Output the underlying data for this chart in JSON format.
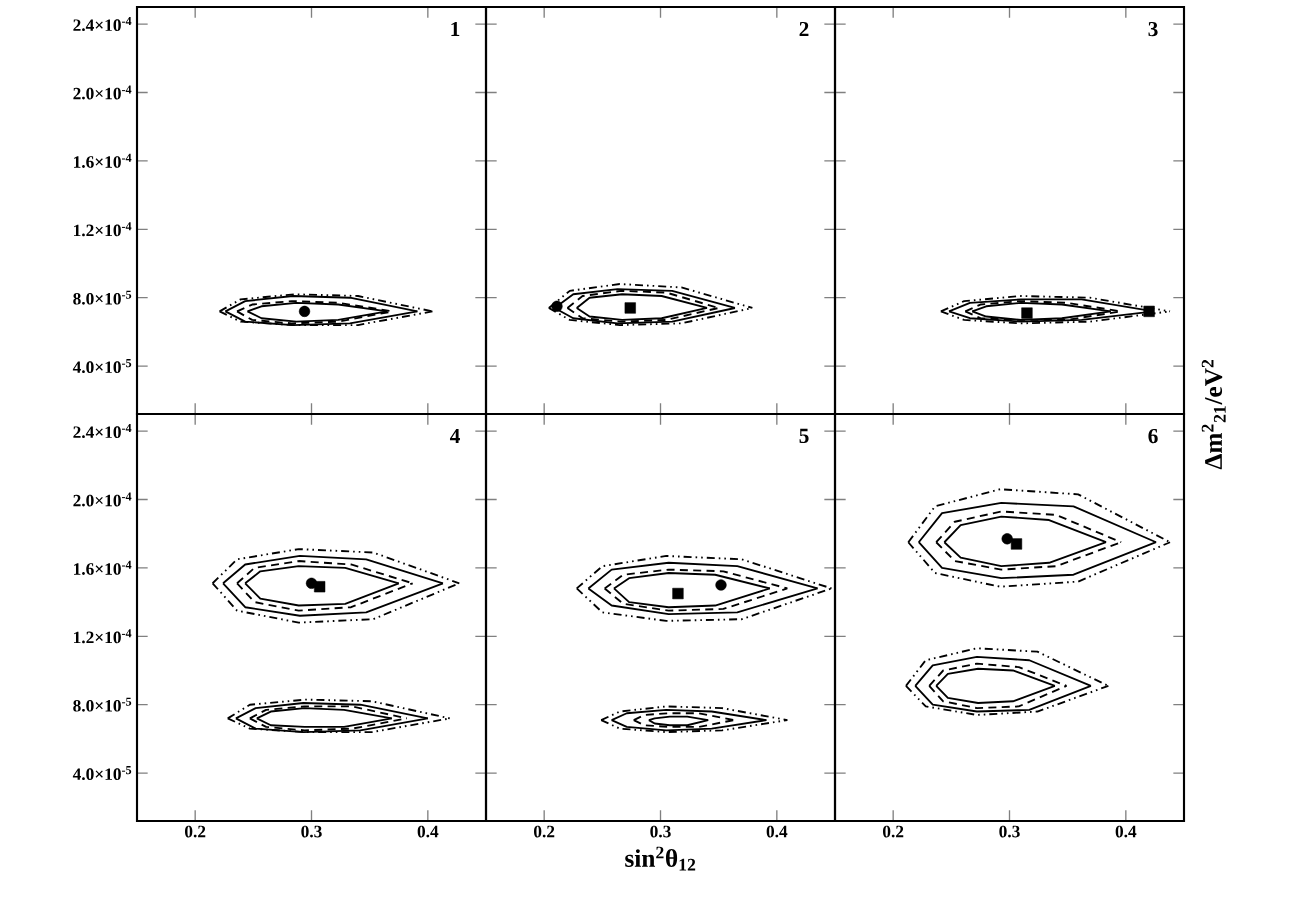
{
  "chart_data": [
    {
      "type": "line",
      "annotations": [
        "1"
      ],
      "xlim": [
        0.15,
        0.45
      ],
      "ylim": [
        1.2e-05,
        0.00025
      ],
      "xticks": [
        0.2,
        0.3,
        0.4
      ],
      "yticks": [
        {
          "value": 4e-05,
          "label": "4.0×10$^{-5}$"
        },
        {
          "value": 8e-05,
          "label": "8.0×10$^{-5}$"
        },
        {
          "value": 0.00012,
          "label": "1.2×10$^{-4}$"
        },
        {
          "value": 0.00016,
          "label": "1.6×10$^{-4}$"
        },
        {
          "value": 0.0002,
          "label": "2.0×10$^{-4}$"
        },
        {
          "value": 0.00024,
          "label": "2.4×10$^{-4}$"
        }
      ],
      "tick_labels": "y",
      "series": [
        {
          "line_style": "solid",
          "color": "#000000",
          "x": [
            0.245,
            0.257,
            0.287,
            0.323,
            0.365
          ],
          "values": [
            7.2e-05,
            7.5e-05,
            7.7e-05,
            7.6e-05,
            7.2e-05
          ]
        },
        {
          "line_style": "solid",
          "color": "#000000",
          "x": [
            0.245,
            0.257,
            0.287,
            0.323,
            0.365
          ],
          "values": [
            7.2e-05,
            6.8e-05,
            6.6e-05,
            6.7e-05,
            7.2e-05
          ]
        },
        {
          "line_style": "dashed",
          "color": "#000000",
          "x": [
            0.236,
            0.249,
            0.283,
            0.323,
            0.37
          ],
          "values": [
            7.2e-05,
            7.6e-05,
            7.8e-05,
            7.7e-05,
            7.2e-05
          ]
        },
        {
          "line_style": "dashed",
          "color": "#000000",
          "x": [
            0.236,
            0.249,
            0.283,
            0.323,
            0.37
          ],
          "values": [
            7.2e-05,
            6.7e-05,
            6.5e-05,
            6.6e-05,
            7.2e-05
          ]
        },
        {
          "line_style": "solid",
          "color": "#000000",
          "x": [
            0.226,
            0.243,
            0.284,
            0.333,
            0.391
          ],
          "values": [
            7.2e-05,
            7.8e-05,
            8.1e-05,
            8e-05,
            7.2e-05
          ]
        },
        {
          "line_style": "solid",
          "color": "#000000",
          "x": [
            0.226,
            0.243,
            0.284,
            0.333,
            0.391
          ],
          "values": [
            7.2e-05,
            6.6e-05,
            6.4e-05,
            6.5e-05,
            7.2e-05
          ]
        },
        {
          "line_style": "dotted",
          "color": "#000000",
          "x": [
            0.221,
            0.239,
            0.285,
            0.34,
            0.404
          ],
          "values": [
            7.2e-05,
            7.9e-05,
            8.2e-05,
            8.1e-05,
            7.2e-05
          ]
        },
        {
          "line_style": "dotted",
          "color": "#000000",
          "x": [
            0.221,
            0.239,
            0.285,
            0.34,
            0.404
          ],
          "values": [
            7.2e-05,
            6.6e-05,
            6.4e-05,
            6.4e-05,
            7.2e-05
          ]
        },
        {
          "type": "scatter",
          "marker": "circle",
          "color": "#000000",
          "x": [
            0.294
          ],
          "values": [
            7.2e-05
          ]
        }
      ]
    },
    {
      "type": "line",
      "annotations": [
        "2"
      ],
      "xlim": [
        0.15,
        0.45
      ],
      "ylim": [
        1.2e-05,
        0.00025
      ],
      "xticks": [
        0.2,
        0.3,
        0.4
      ],
      "yticks": [
        {
          "value": 4e-05,
          "label": null
        },
        {
          "value": 8e-05,
          "label": null
        },
        {
          "value": 0.00012,
          "label": null
        },
        {
          "value": 0.00016,
          "label": null
        },
        {
          "value": 0.0002,
          "label": null
        },
        {
          "value": 0.00024,
          "label": null
        }
      ],
      "tick_labels": false,
      "series": [
        {
          "line_style": "solid",
          "color": "#000000",
          "x": [
            0.228,
            0.239,
            0.267,
            0.301,
            0.34
          ],
          "values": [
            7.4e-05,
            8e-05,
            8.2e-05,
            8.1e-05,
            7.4e-05
          ]
        },
        {
          "line_style": "solid",
          "color": "#000000",
          "x": [
            0.228,
            0.239,
            0.267,
            0.301,
            0.34
          ],
          "values": [
            7.4e-05,
            6.9e-05,
            6.7e-05,
            6.8e-05,
            7.4e-05
          ]
        },
        {
          "line_style": "dashed",
          "color": "#000000",
          "x": [
            0.22,
            0.233,
            0.266,
            0.305,
            0.35
          ],
          "values": [
            7.4e-05,
            8.1e-05,
            8.4e-05,
            8.3e-05,
            7.4e-05
          ]
        },
        {
          "line_style": "dashed",
          "color": "#000000",
          "x": [
            0.22,
            0.233,
            0.266,
            0.305,
            0.35
          ],
          "values": [
            7.4e-05,
            6.8e-05,
            6.6e-05,
            6.7e-05,
            7.4e-05
          ]
        },
        {
          "line_style": "solid",
          "color": "#000000",
          "x": [
            0.209,
            0.225,
            0.263,
            0.31,
            0.364
          ],
          "values": [
            7.4e-05,
            8.2e-05,
            8.5e-05,
            8.4e-05,
            7.4e-05
          ]
        },
        {
          "line_style": "solid",
          "color": "#000000",
          "x": [
            0.209,
            0.225,
            0.263,
            0.31,
            0.364
          ],
          "values": [
            7.4e-05,
            6.8e-05,
            6.5e-05,
            6.6e-05,
            7.4e-05
          ]
        },
        {
          "line_style": "dotted",
          "color": "#000000",
          "x": [
            0.204,
            0.222,
            0.265,
            0.318,
            0.379
          ],
          "values": [
            7.4e-05,
            8.4e-05,
            8.8e-05,
            8.6e-05,
            7.4e-05
          ]
        },
        {
          "line_style": "dotted",
          "color": "#000000",
          "x": [
            0.204,
            0.222,
            0.265,
            0.318,
            0.379
          ],
          "values": [
            7.4e-05,
            6.7e-05,
            6.4e-05,
            6.5e-05,
            7.4e-05
          ]
        },
        {
          "type": "scatter",
          "marker": "circle",
          "color": "#000000",
          "x": [
            0.211
          ],
          "values": [
            7.5e-05
          ]
        },
        {
          "type": "scatter",
          "marker": "square",
          "color": "#000000",
          "x": [
            0.274
          ],
          "values": [
            7.4e-05
          ]
        }
      ]
    },
    {
      "type": "line",
      "annotations": [
        "3"
      ],
      "xlim": [
        0.15,
        0.45
      ],
      "ylim": [
        1.2e-05,
        0.00025
      ],
      "xticks": [
        0.2,
        0.3,
        0.4
      ],
      "yticks": [
        {
          "value": 4e-05,
          "label": null
        },
        {
          "value": 8e-05,
          "label": null
        },
        {
          "value": 0.00012,
          "label": null
        },
        {
          "value": 0.00016,
          "label": null
        },
        {
          "value": 0.0002,
          "label": null
        },
        {
          "value": 0.00024,
          "label": null
        }
      ],
      "tick_labels": false,
      "series": [
        {
          "line_style": "solid",
          "color": "#000000",
          "x": [
            0.268,
            0.28,
            0.31,
            0.345,
            0.387
          ],
          "values": [
            7.2e-05,
            7.5e-05,
            7.7e-05,
            7.6e-05,
            7.2e-05
          ]
        },
        {
          "line_style": "solid",
          "color": "#000000",
          "x": [
            0.268,
            0.28,
            0.31,
            0.345,
            0.387
          ],
          "values": [
            7.2e-05,
            6.9e-05,
            6.7e-05,
            6.8e-05,
            7.2e-05
          ]
        },
        {
          "line_style": "dashed",
          "color": "#000000",
          "x": [
            0.262,
            0.275,
            0.309,
            0.349,
            0.396
          ],
          "values": [
            7.2e-05,
            7.6e-05,
            7.8e-05,
            7.7e-05,
            7.2e-05
          ]
        },
        {
          "line_style": "dashed",
          "color": "#000000",
          "x": [
            0.262,
            0.275,
            0.309,
            0.349,
            0.396
          ],
          "values": [
            7.2e-05,
            6.8e-05,
            6.7e-05,
            6.7e-05,
            7.2e-05
          ]
        },
        {
          "line_style": "solid",
          "color": "#000000",
          "x": [
            0.248,
            0.266,
            0.31,
            0.362,
            0.424
          ],
          "values": [
            7.2e-05,
            7.7e-05,
            7.9e-05,
            7.9e-05,
            7.2e-05
          ]
        },
        {
          "line_style": "solid",
          "color": "#000000",
          "x": [
            0.248,
            0.266,
            0.31,
            0.362,
            0.424
          ],
          "values": [
            7.2e-05,
            6.8e-05,
            6.6e-05,
            6.7e-05,
            7.2e-05
          ]
        },
        {
          "line_style": "dotted",
          "color": "#000000",
          "x": [
            0.241,
            0.261,
            0.31,
            0.369,
            0.438
          ],
          "values": [
            7.2e-05,
            7.8e-05,
            8.1e-05,
            8e-05,
            7.2e-05
          ]
        },
        {
          "line_style": "dotted",
          "color": "#000000",
          "x": [
            0.241,
            0.261,
            0.31,
            0.369,
            0.438
          ],
          "values": [
            7.2e-05,
            6.7e-05,
            6.5e-05,
            6.6e-05,
            7.2e-05
          ]
        },
        {
          "type": "scatter",
          "marker": "square",
          "color": "#000000",
          "x": [
            0.315,
            0.42
          ],
          "values": [
            7.1e-05,
            7.2e-05
          ]
        }
      ]
    },
    {
      "type": "line",
      "annotations": [
        "4"
      ],
      "xlim": [
        0.15,
        0.45
      ],
      "ylim": [
        1.2e-05,
        0.00025
      ],
      "xticks": [
        0.2,
        0.3,
        0.4
      ],
      "yticks": [
        {
          "value": 4e-05,
          "label": "4.0×10$^{-5}$"
        },
        {
          "value": 8e-05,
          "label": "8.0×10$^{-5}$"
        },
        {
          "value": 0.00012,
          "label": "1.2×10$^{-4}$"
        },
        {
          "value": 0.00016,
          "label": "1.6×10$^{-4}$"
        },
        {
          "value": 0.0002,
          "label": "2.0×10$^{-4}$"
        },
        {
          "value": 0.00024,
          "label": "2.4×10$^{-4}$"
        }
      ],
      "series": [
        {
          "line_style": "solid",
          "color": "#000000",
          "x": [
            0.243,
            0.256,
            0.289,
            0.329,
            0.375
          ],
          "values": [
            0.000151,
            0.000158,
            0.000161,
            0.00016,
            0.000151
          ]
        },
        {
          "line_style": "solid",
          "color": "#000000",
          "x": [
            0.243,
            0.256,
            0.289,
            0.329,
            0.375
          ],
          "values": [
            0.000151,
            0.000142,
            0.000138,
            0.000139,
            0.000151
          ]
        },
        {
          "line_style": "dashed",
          "color": "#000000",
          "x": [
            0.236,
            0.251,
            0.289,
            0.334,
            0.387
          ],
          "values": [
            0.000151,
            0.00016,
            0.000164,
            0.000162,
            0.000151
          ]
        },
        {
          "line_style": "dashed",
          "color": "#000000",
          "x": [
            0.236,
            0.251,
            0.289,
            0.334,
            0.387
          ],
          "values": [
            0.000151,
            0.00014,
            0.000135,
            0.000137,
            0.000151
          ]
        },
        {
          "line_style": "solid",
          "color": "#000000",
          "x": [
            0.224,
            0.243,
            0.29,
            0.347,
            0.413
          ],
          "values": [
            0.000151,
            0.000162,
            0.000167,
            0.000165,
            0.000151
          ]
        },
        {
          "line_style": "solid",
          "color": "#000000",
          "x": [
            0.224,
            0.243,
            0.29,
            0.347,
            0.413
          ],
          "values": [
            0.000151,
            0.000137,
            0.000132,
            0.000134,
            0.000151
          ]
        },
        {
          "line_style": "dotted",
          "color": "#000000",
          "x": [
            0.215,
            0.236,
            0.289,
            0.353,
            0.427
          ],
          "values": [
            0.000151,
            0.000165,
            0.000171,
            0.000169,
            0.000151
          ]
        },
        {
          "line_style": "dotted",
          "color": "#000000",
          "x": [
            0.215,
            0.236,
            0.289,
            0.353,
            0.427
          ],
          "values": [
            0.000151,
            0.000135,
            0.000128,
            0.00013,
            0.000151
          ]
        },
        {
          "line_style": "solid",
          "color": "#000000",
          "x": [
            0.253,
            0.265,
            0.294,
            0.328,
            0.369
          ],
          "values": [
            7.2e-05,
            7.6e-05,
            7.8e-05,
            7.7e-05,
            7.2e-05
          ]
        },
        {
          "line_style": "solid",
          "color": "#000000",
          "x": [
            0.253,
            0.265,
            0.294,
            0.328,
            0.369
          ],
          "values": [
            7.2e-05,
            6.8e-05,
            6.7e-05,
            6.7e-05,
            7.2e-05
          ]
        },
        {
          "line_style": "dashed",
          "color": "#000000",
          "x": [
            0.247,
            0.261,
            0.294,
            0.335,
            0.382
          ],
          "values": [
            7.2e-05,
            7.7e-05,
            7.9e-05,
            7.9e-05,
            7.2e-05
          ]
        },
        {
          "line_style": "dashed",
          "color": "#000000",
          "x": [
            0.247,
            0.261,
            0.294,
            0.335,
            0.382
          ],
          "values": [
            7.2e-05,
            6.7e-05,
            6.5e-05,
            6.6e-05,
            7.2e-05
          ]
        },
        {
          "line_style": "solid",
          "color": "#000000",
          "x": [
            0.235,
            0.252,
            0.293,
            0.342,
            0.4
          ],
          "values": [
            7.2e-05,
            7.8e-05,
            8.1e-05,
            8e-05,
            7.2e-05
          ]
        },
        {
          "line_style": "solid",
          "color": "#000000",
          "x": [
            0.235,
            0.252,
            0.293,
            0.342,
            0.4
          ],
          "values": [
            7.2e-05,
            6.6e-05,
            6.4e-05,
            6.5e-05,
            7.2e-05
          ]
        },
        {
          "line_style": "dotted",
          "color": "#000000",
          "x": [
            0.228,
            0.247,
            0.295,
            0.352,
            0.419
          ],
          "values": [
            7.2e-05,
            8e-05,
            8.3e-05,
            8.2e-05,
            7.2e-05
          ]
        },
        {
          "line_style": "dotted",
          "color": "#000000",
          "x": [
            0.228,
            0.247,
            0.295,
            0.352,
            0.419
          ],
          "values": [
            7.2e-05,
            6.6e-05,
            6.4e-05,
            6.4e-05,
            7.2e-05
          ]
        },
        {
          "type": "scatter",
          "marker": "circle",
          "color": "#000000",
          "x": [
            0.3
          ],
          "values": [
            0.000151
          ]
        },
        {
          "type": "scatter",
          "marker": "square",
          "color": "#000000",
          "x": [
            0.307
          ],
          "values": [
            0.000149
          ]
        }
      ]
    },
    {
      "type": "line",
      "annotations": [
        "5"
      ],
      "xlabel": "sin$^{2}$θ$_{12}$",
      "xlim": [
        0.15,
        0.45
      ],
      "ylim": [
        1.2e-05,
        0.00025
      ],
      "xticks": [
        0.2,
        0.3,
        0.4
      ],
      "yticks": [
        {
          "value": 4e-05,
          "label": null
        },
        {
          "value": 8e-05,
          "label": null
        },
        {
          "value": 0.00012,
          "label": null
        },
        {
          "value": 0.00016,
          "label": null
        },
        {
          "value": 0.0002,
          "label": null
        },
        {
          "value": 0.00024,
          "label": null
        }
      ],
      "tick_labels": "x",
      "series": [
        {
          "line_style": "solid",
          "color": "#000000",
          "x": [
            0.26,
            0.273,
            0.307,
            0.347,
            0.394
          ],
          "values": [
            0.000148,
            0.000154,
            0.000157,
            0.000156,
            0.000148
          ]
        },
        {
          "line_style": "solid",
          "color": "#000000",
          "x": [
            0.26,
            0.273,
            0.307,
            0.347,
            0.394
          ],
          "values": [
            0.000148,
            0.00014,
            0.000137,
            0.000138,
            0.000148
          ]
        },
        {
          "line_style": "dashed",
          "color": "#000000",
          "x": [
            0.252,
            0.268,
            0.307,
            0.354,
            0.409
          ],
          "values": [
            0.000148,
            0.000156,
            0.000159,
            0.000158,
            0.000148
          ]
        },
        {
          "line_style": "dashed",
          "color": "#000000",
          "x": [
            0.252,
            0.268,
            0.307,
            0.354,
            0.409
          ],
          "values": [
            0.000148,
            0.000139,
            0.000135,
            0.000136,
            0.000148
          ]
        },
        {
          "line_style": "solid",
          "color": "#000000",
          "x": [
            0.238,
            0.258,
            0.307,
            0.366,
            0.435
          ],
          "values": [
            0.000148,
            0.000159,
            0.000163,
            0.000161,
            0.000148
          ]
        },
        {
          "line_style": "solid",
          "color": "#000000",
          "x": [
            0.238,
            0.258,
            0.307,
            0.366,
            0.435
          ],
          "values": [
            0.000148,
            0.000138,
            0.000133,
            0.000134,
            0.000148
          ]
        },
        {
          "line_style": "dotted",
          "color": "#000000",
          "x": [
            0.228,
            0.25,
            0.305,
            0.37,
            0.447
          ],
          "values": [
            0.000148,
            0.000161,
            0.000167,
            0.000165,
            0.000148
          ]
        },
        {
          "line_style": "dotted",
          "color": "#000000",
          "x": [
            0.228,
            0.25,
            0.305,
            0.37,
            0.447
          ],
          "values": [
            0.000148,
            0.000134,
            0.000129,
            0.00013,
            0.000148
          ]
        },
        {
          "line_style": "solid",
          "color": "#000000",
          "x": [
            0.29,
            0.295,
            0.308,
            0.323,
            0.341
          ],
          "values": [
            7.1e-05,
            7.2e-05,
            7.3e-05,
            7.3e-05,
            7.1e-05
          ]
        },
        {
          "line_style": "solid",
          "color": "#000000",
          "x": [
            0.29,
            0.295,
            0.308,
            0.323,
            0.341
          ],
          "values": [
            7.1e-05,
            6.9e-05,
            6.8e-05,
            6.8e-05,
            7.1e-05
          ]
        },
        {
          "line_style": "dashed",
          "color": "#000000",
          "x": [
            0.277,
            0.286,
            0.307,
            0.333,
            0.363
          ],
          "values": [
            7.1e-05,
            7.4e-05,
            7.5e-05,
            7.5e-05,
            7.1e-05
          ]
        },
        {
          "line_style": "dashed",
          "color": "#000000",
          "x": [
            0.277,
            0.286,
            0.307,
            0.333,
            0.363
          ],
          "values": [
            7.1e-05,
            6.8e-05,
            6.7e-05,
            6.7e-05,
            7.1e-05
          ]
        },
        {
          "line_style": "solid",
          "color": "#000000",
          "x": [
            0.258,
            0.271,
            0.305,
            0.344,
            0.391
          ],
          "values": [
            7.1e-05,
            7.5e-05,
            7.7e-05,
            7.6e-05,
            7.1e-05
          ]
        },
        {
          "line_style": "solid",
          "color": "#000000",
          "x": [
            0.258,
            0.271,
            0.305,
            0.344,
            0.391
          ],
          "values": [
            7.1e-05,
            6.7e-05,
            6.5e-05,
            6.6e-05,
            7.1e-05
          ]
        },
        {
          "line_style": "dotted",
          "color": "#000000",
          "x": [
            0.249,
            0.265,
            0.305,
            0.353,
            0.409
          ],
          "values": [
            7.1e-05,
            7.6e-05,
            7.9e-05,
            7.8e-05,
            7.1e-05
          ]
        },
        {
          "line_style": "dotted",
          "color": "#000000",
          "x": [
            0.249,
            0.265,
            0.305,
            0.353,
            0.409
          ],
          "values": [
            7.1e-05,
            6.6e-05,
            6.4e-05,
            6.5e-05,
            7.1e-05
          ]
        },
        {
          "type": "scatter",
          "marker": "square",
          "color": "#000000",
          "x": [
            0.315
          ],
          "values": [
            0.000145
          ]
        },
        {
          "type": "scatter",
          "marker": "circle",
          "color": "#000000",
          "x": [
            0.352
          ],
          "values": [
            0.00015
          ]
        }
      ]
    },
    {
      "type": "line",
      "annotations": [
        "6"
      ],
      "ylabel": "Δm$^{2}$$_{21}$/eV$^{2}$",
      "xlim": [
        0.15,
        0.45
      ],
      "ylim": [
        1.2e-05,
        0.00025
      ],
      "xticks": [
        0.2,
        0.3,
        0.4
      ],
      "yticks": [
        {
          "value": 4e-05,
          "label": null
        },
        {
          "value": 8e-05,
          "label": null
        },
        {
          "value": 0.00012,
          "label": null
        },
        {
          "value": 0.00016,
          "label": null
        },
        {
          "value": 0.0002,
          "label": null
        },
        {
          "value": 0.00024,
          "label": null
        }
      ],
      "tick_labels": "x",
      "series": [
        {
          "line_style": "solid",
          "color": "#000000",
          "x": [
            0.244,
            0.258,
            0.293,
            0.334,
            0.383
          ],
          "values": [
            0.000175,
            0.000185,
            0.00019,
            0.000188,
            0.000175
          ]
        },
        {
          "line_style": "solid",
          "color": "#000000",
          "x": [
            0.244,
            0.258,
            0.293,
            0.334,
            0.383
          ],
          "values": [
            0.000175,
            0.000166,
            0.000161,
            0.000163,
            0.000175
          ]
        },
        {
          "line_style": "dashed",
          "color": "#000000",
          "x": [
            0.237,
            0.253,
            0.293,
            0.34,
            0.396
          ],
          "values": [
            0.000175,
            0.000187,
            0.000193,
            0.000191,
            0.000175
          ]
        },
        {
          "line_style": "dashed",
          "color": "#000000",
          "x": [
            0.237,
            0.253,
            0.293,
            0.34,
            0.396
          ],
          "values": [
            0.000175,
            0.000164,
            0.000159,
            0.000161,
            0.000175
          ]
        },
        {
          "line_style": "solid",
          "color": "#000000",
          "x": [
            0.222,
            0.242,
            0.293,
            0.355,
            0.426
          ],
          "values": [
            0.000175,
            0.000192,
            0.000198,
            0.000196,
            0.000175
          ]
        },
        {
          "line_style": "solid",
          "color": "#000000",
          "x": [
            0.222,
            0.242,
            0.293,
            0.355,
            0.426
          ],
          "values": [
            0.000175,
            0.00016,
            0.000154,
            0.000156,
            0.000175
          ]
        },
        {
          "line_style": "dotted",
          "color": "#000000",
          "x": [
            0.213,
            0.236,
            0.292,
            0.359,
            0.438
          ],
          "values": [
            0.000175,
            0.000196,
            0.000206,
            0.000203,
            0.000175
          ]
        },
        {
          "line_style": "dotted",
          "color": "#000000",
          "x": [
            0.213,
            0.236,
            0.292,
            0.359,
            0.438
          ],
          "values": [
            0.000175,
            0.000157,
            0.000149,
            0.000152,
            0.000175
          ]
        },
        {
          "line_style": "solid",
          "color": "#000000",
          "x": [
            0.237,
            0.247,
            0.273,
            0.303,
            0.339
          ],
          "values": [
            9.1e-05,
            9.8e-05,
            0.000101,
            0.0001,
            9.1e-05
          ]
        },
        {
          "line_style": "solid",
          "color": "#000000",
          "x": [
            0.237,
            0.247,
            0.273,
            0.303,
            0.339
          ],
          "values": [
            9.1e-05,
            8.4e-05,
            8.1e-05,
            8.2e-05,
            9.1e-05
          ]
        },
        {
          "line_style": "dashed",
          "color": "#000000",
          "x": [
            0.231,
            0.243,
            0.272,
            0.308,
            0.349
          ],
          "values": [
            9.1e-05,
            0.0001,
            0.000104,
            0.000102,
            9.1e-05
          ]
        },
        {
          "line_style": "dashed",
          "color": "#000000",
          "x": [
            0.231,
            0.243,
            0.272,
            0.308,
            0.349
          ],
          "values": [
            9.1e-05,
            8.2e-05,
            7.8e-05,
            7.9e-05,
            9.1e-05
          ]
        },
        {
          "line_style": "solid",
          "color": "#000000",
          "x": [
            0.219,
            0.234,
            0.272,
            0.317,
            0.37
          ],
          "values": [
            9.1e-05,
            0.000103,
            0.000108,
            0.000106,
            9.1e-05
          ]
        },
        {
          "line_style": "solid",
          "color": "#000000",
          "x": [
            0.219,
            0.234,
            0.272,
            0.317,
            0.37
          ],
          "values": [
            9.1e-05,
            8e-05,
            7.6e-05,
            7.7e-05,
            9.1e-05
          ]
        },
        {
          "line_style": "dotted",
          "color": "#000000",
          "x": [
            0.211,
            0.228,
            0.272,
            0.324,
            0.385
          ],
          "values": [
            9.1e-05,
            0.000106,
            0.000113,
            0.000111,
            9.1e-05
          ]
        },
        {
          "line_style": "dotted",
          "color": "#000000",
          "x": [
            0.211,
            0.228,
            0.272,
            0.324,
            0.385
          ],
          "values": [
            9.1e-05,
            7.9e-05,
            7.4e-05,
            7.6e-05,
            9.1e-05
          ]
        },
        {
          "type": "scatter",
          "marker": "circle",
          "color": "#000000",
          "x": [
            0.298
          ],
          "values": [
            0.000177
          ]
        },
        {
          "type": "scatter",
          "marker": "square",
          "color": "#000000",
          "x": [
            0.306
          ],
          "values": [
            0.000174
          ]
        }
      ]
    }
  ]
}
